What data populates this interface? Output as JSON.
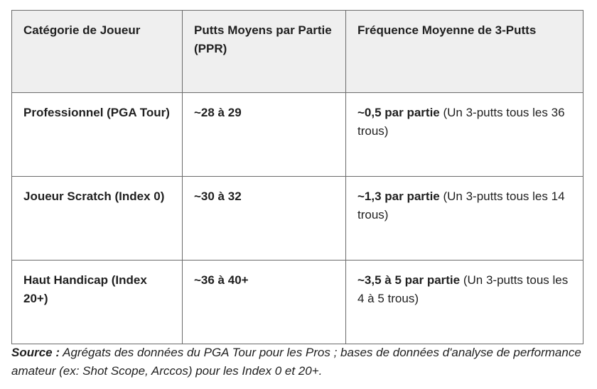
{
  "table": {
    "headers": [
      "Catégorie de Joueur",
      "Putts Moyens par Partie (PPR)",
      "Fréquence Moyenne de 3-Putts"
    ],
    "rows": [
      [
        {
          "strong": "Professionnel (PGA Tour)"
        },
        {
          "strong": "~28 à 29"
        },
        {
          "strong": "~0,5 par partie",
          "text": " (Un 3-putts tous les 36 trous)"
        }
      ],
      [
        {
          "strong": "Joueur Scratch (Index 0)"
        },
        {
          "strong": "~30 à 32"
        },
        {
          "strong": "~1,3 par partie",
          "text": " (Un 3-putts tous les 14 trous)"
        }
      ],
      [
        {
          "strong": "Haut Handicap (Index 20+)"
        },
        {
          "strong": "~36 à 40+"
        },
        {
          "strong": "~3,5 à 5 par partie",
          "text": " (Un 3-putts tous les 4 à 5 trous)"
        }
      ]
    ]
  },
  "source": {
    "label": "Source :",
    "text": " Agrégats des données du PGA Tour pour les Pros ; bases de données d'analyse de performance amateur (ex: Shot Scope, Arccos) pour les Index 0 et 20+."
  }
}
